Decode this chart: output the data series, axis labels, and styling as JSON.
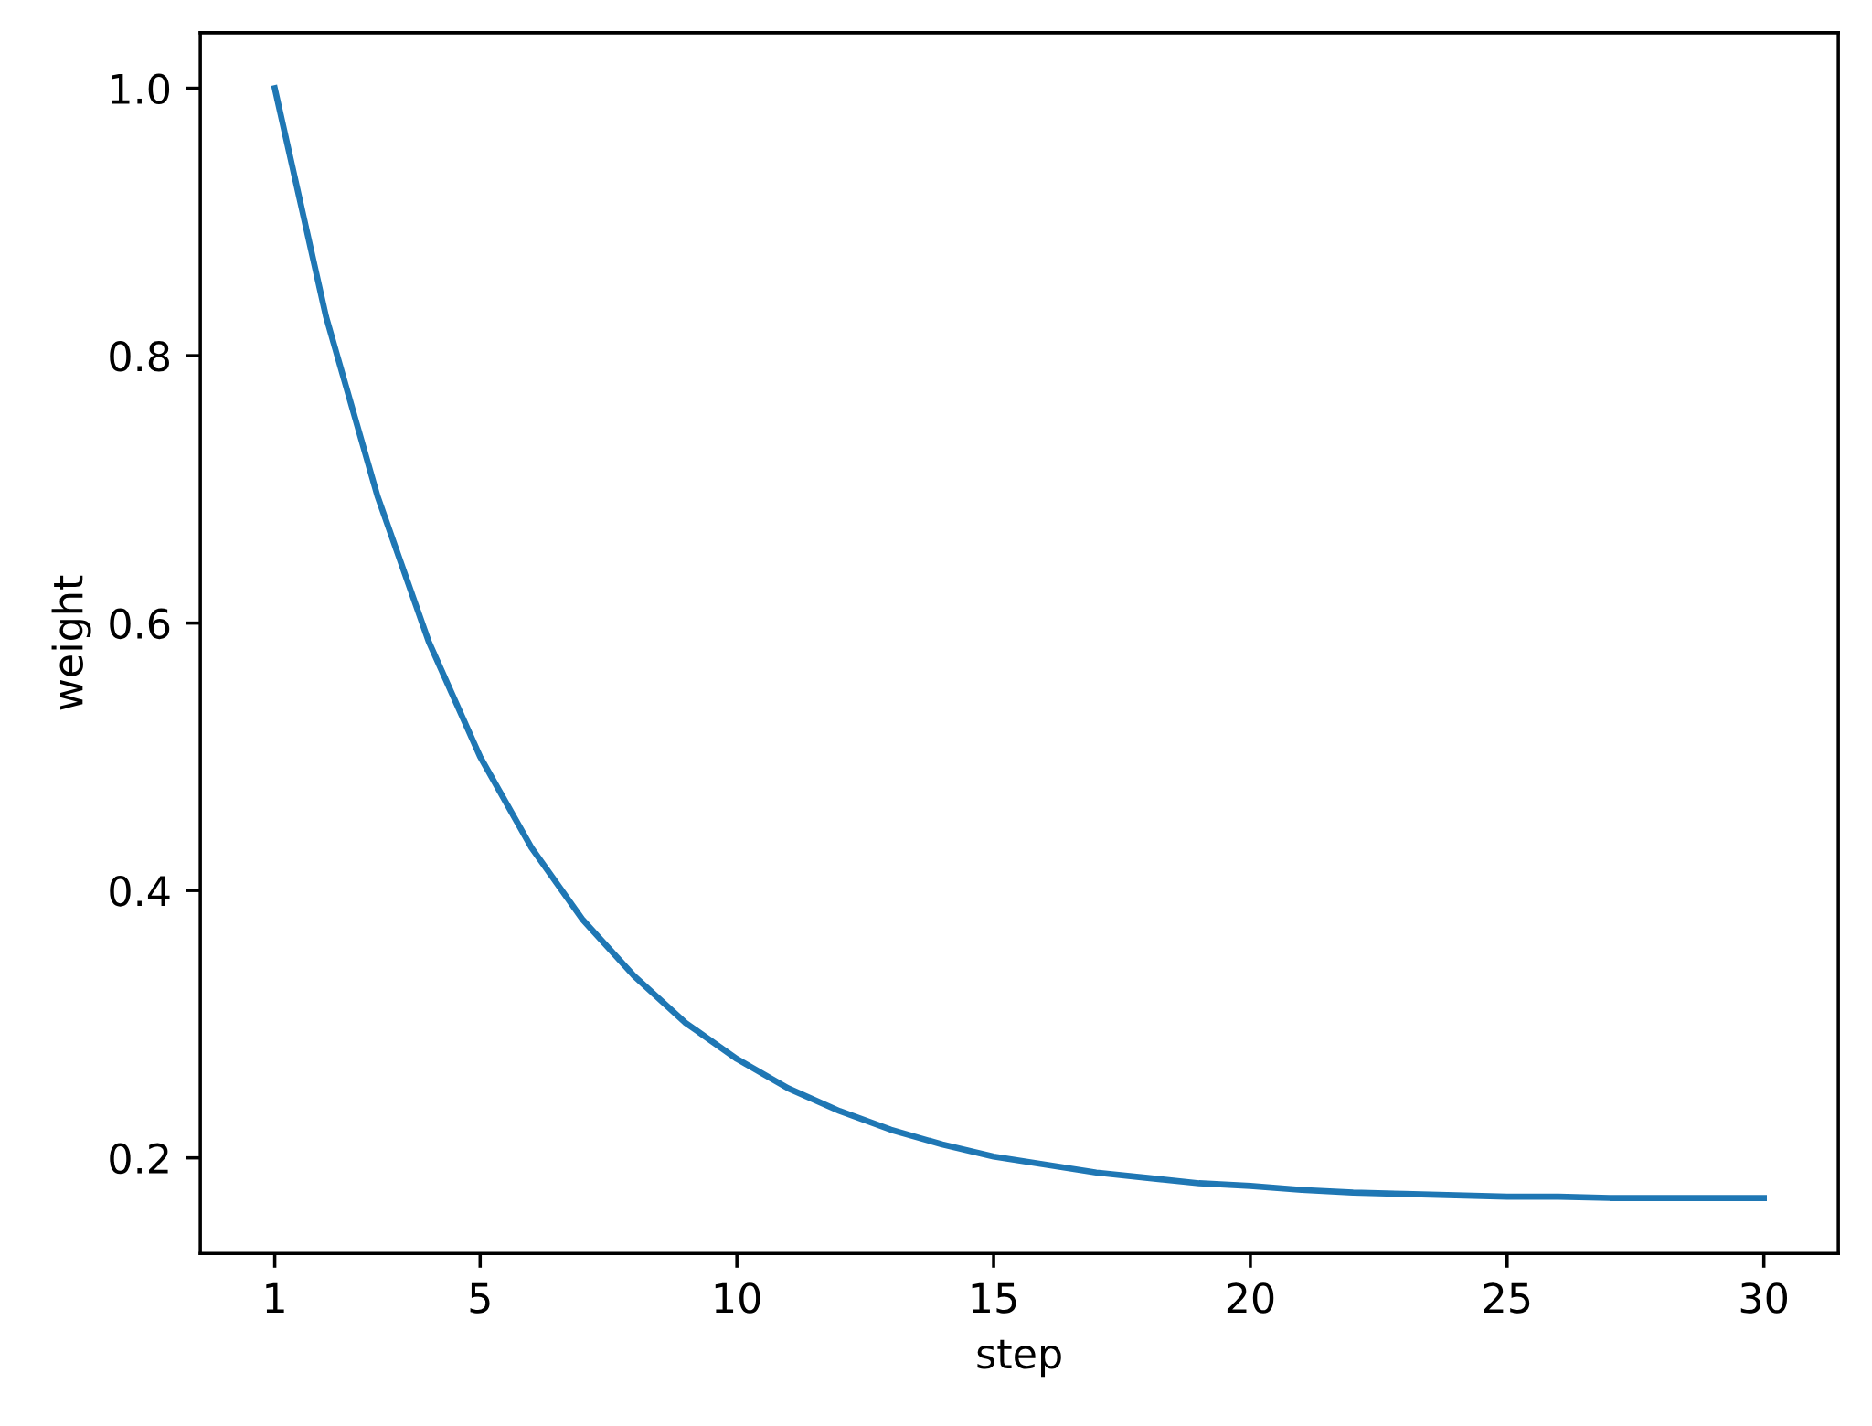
{
  "chart_data": {
    "type": "line",
    "xlabel": "step",
    "ylabel": "weight",
    "x": [
      1,
      2,
      3,
      4,
      5,
      6,
      7,
      8,
      9,
      10,
      11,
      12,
      13,
      14,
      15,
      16,
      17,
      18,
      19,
      20,
      21,
      22,
      23,
      24,
      25,
      26,
      27,
      28,
      29,
      30
    ],
    "series": [
      {
        "color": "#1f77b4",
        "values": [
          1.0,
          0.829,
          0.695,
          0.586,
          0.5,
          0.432,
          0.378,
          0.336,
          0.301,
          0.274,
          0.252,
          0.235,
          0.221,
          0.21,
          0.201,
          0.195,
          0.189,
          0.185,
          0.181,
          0.179,
          0.176,
          0.174,
          0.173,
          0.172,
          0.171,
          0.171,
          0.17,
          0.17,
          0.17,
          0.17
        ]
      }
    ],
    "xlim": [
      -0.45,
      31.45
    ],
    "ylim": [
      0.1285,
      1.0415
    ],
    "xticks": [
      1,
      5,
      10,
      15,
      20,
      25,
      30
    ],
    "yticks": [
      0.2,
      0.4,
      0.6,
      0.8,
      {
        "value": 1.0,
        "label": "1.0"
      }
    ],
    "grid": false,
    "legend": false,
    "marker": "none",
    "line_style": "solid"
  }
}
